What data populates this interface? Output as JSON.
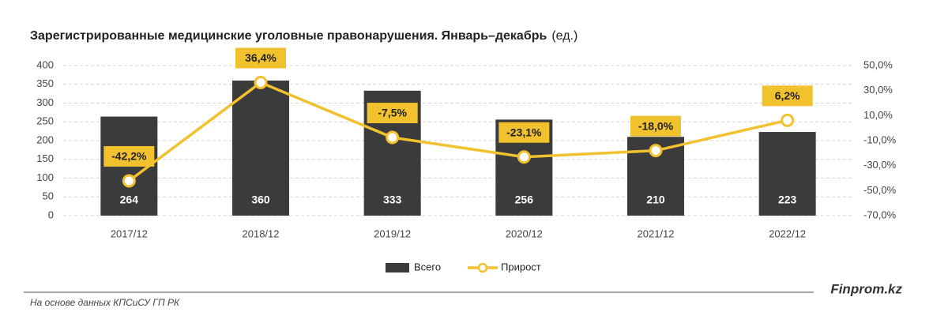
{
  "chart_data": {
    "type": "bar",
    "title": "Зарегистрированные медицинские уголовные правонарушения. Январь–декабрь",
    "unit": "(ед.)",
    "categories": [
      "2017/12",
      "2018/12",
      "2019/12",
      "2020/12",
      "2021/12",
      "2022/12"
    ],
    "series": [
      {
        "name": "Всего",
        "type": "bar",
        "color": "#3b3b3b",
        "values": [
          264,
          360,
          333,
          256,
          210,
          223
        ]
      },
      {
        "name": "Прирост",
        "type": "line",
        "axis": "y2",
        "color": "#f2c12e",
        "values": [
          -42.2,
          36.4,
          -7.5,
          -23.1,
          -18.0,
          6.2
        ],
        "value_labels": [
          "-42,2%",
          "36,4%",
          "-7,5%",
          "-23,1%",
          "-18,0%",
          "6,2%"
        ]
      }
    ],
    "ylim": [
      0,
      400
    ],
    "yticks": [
      0,
      50,
      100,
      150,
      200,
      250,
      300,
      350,
      400
    ],
    "y2lim": [
      -70,
      50
    ],
    "y2ticks": [
      {
        "value": -70,
        "label": "-70,0%"
      },
      {
        "value": -50,
        "label": "-50,0%"
      },
      {
        "value": -30,
        "label": "-30,0%"
      },
      {
        "value": -10,
        "label": "-10,0%"
      },
      {
        "value": 10,
        "label": "10,0%"
      },
      {
        "value": 30,
        "label": "30,0%"
      },
      {
        "value": 50,
        "label": "50,0%"
      }
    ],
    "grid": true,
    "legend": "bottom",
    "source": "На основе данных КПСиСУ ГП РК",
    "brand": "Finprom.kz"
  }
}
